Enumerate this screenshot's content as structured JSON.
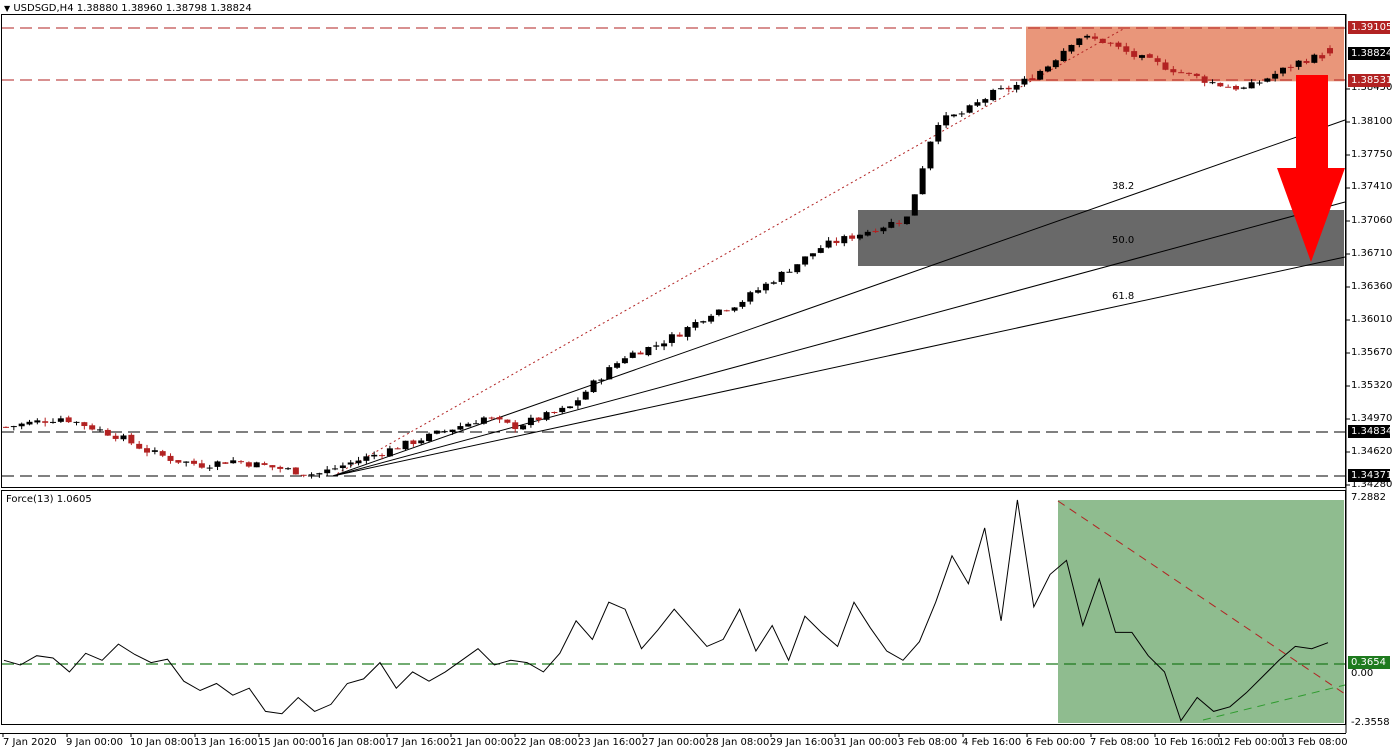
{
  "header": {
    "title": "USDSGD,H4  1.38880 1.38960 1.38798 1.38824",
    "symbol": "USDSGD",
    "timeframe": "H4",
    "open": "1.38880",
    "high": "1.38960",
    "low": "1.38798",
    "close": "1.38824"
  },
  "indicator": {
    "title": "Force(13) 1.0605",
    "name": "Force(13)",
    "value": "1.0605"
  },
  "price_axis": {
    "ticks": [
      "1.38450",
      "1.38100",
      "1.37750",
      "1.37410",
      "1.37060",
      "1.36710",
      "1.36360",
      "1.36010",
      "1.35670",
      "1.35320",
      "1.34970",
      "1.34620",
      "1.34280"
    ],
    "tags": [
      {
        "label": "1.39105",
        "color": "#b22222"
      },
      {
        "label": "1.38824",
        "color": "#000000"
      },
      {
        "label": "1.38531",
        "color": "#b22222"
      },
      {
        "label": "1.34834",
        "color": "#000000"
      },
      {
        "label": "1.34371",
        "color": "#000000"
      }
    ]
  },
  "force_axis": {
    "ticks": [
      "7.2882",
      "0.00",
      "-2.3558"
    ],
    "tag": {
      "label": "0.3654",
      "color": "#1e7a1e"
    }
  },
  "time_axis": [
    "7 Jan 2020",
    "9 Jan 00:00",
    "10 Jan 08:00",
    "13 Jan 16:00",
    "15 Jan 00:00",
    "16 Jan 08:00",
    "17 Jan 16:00",
    "21 Jan 00:00",
    "22 Jan 08:00",
    "23 Jan 16:00",
    "27 Jan 00:00",
    "28 Jan 08:00",
    "29 Jan 16:00",
    "31 Jan 00:00",
    "3 Feb 08:00",
    "4 Feb 16:00",
    "6 Feb 00:00",
    "7 Feb 08:00",
    "10 Feb 16:00",
    "12 Feb 00:00",
    "13 Feb 08:00"
  ],
  "fibonacci": {
    "labels": [
      "38.2",
      "50.0",
      "61.8"
    ]
  },
  "colors": {
    "bull": "#000000",
    "bear": "#b22222",
    "resistance_zone": "#e9967a",
    "support_zone": "#696969",
    "force_zone": "#8fbc8f",
    "arrow": "#ff0000",
    "force_level": "#1e7a1e"
  },
  "chart_data": [
    {
      "type": "candlestick",
      "title": "USDSGD,H4",
      "ylim": [
        1.3428,
        1.39105
      ],
      "horizontal_levels": [
        1.39105,
        1.38531,
        1.34834,
        1.34371
      ],
      "resistance_zone": [
        1.38531,
        1.39105
      ],
      "support_zone": [
        1.3656,
        1.372
      ],
      "annotation": "Red down arrow from resistance zone to 61.8 fib fan line (~1.3660)",
      "x_labels": [
        "7 Jan 2020",
        "9 Jan 00:00",
        "10 Jan 08:00",
        "13 Jan 16:00",
        "15 Jan 00:00",
        "16 Jan 08:00",
        "17 Jan 16:00",
        "21 Jan 00:00",
        "22 Jan 08:00",
        "23 Jan 16:00",
        "27 Jan 00:00",
        "28 Jan 08:00",
        "29 Jan 16:00",
        "31 Jan 00:00",
        "3 Feb 08:00",
        "4 Feb 16:00",
        "6 Feb 00:00",
        "7 Feb 08:00",
        "10 Feb 16:00",
        "12 Feb 00:00",
        "13 Feb 08:00"
      ],
      "approx_close_path": [
        1.349,
        1.3495,
        1.35,
        1.349,
        1.348,
        1.3465,
        1.3455,
        1.345,
        1.3455,
        1.345,
        1.3445,
        1.344,
        1.345,
        1.346,
        1.347,
        1.348,
        1.349,
        1.35,
        1.349,
        1.35,
        1.351,
        1.354,
        1.3565,
        1.3575,
        1.359,
        1.361,
        1.362,
        1.364,
        1.366,
        1.368,
        1.369,
        1.37,
        1.371,
        1.381,
        1.382,
        1.384,
        1.385,
        1.387,
        1.39,
        1.3895,
        1.388,
        1.387,
        1.386,
        1.385,
        1.3845,
        1.386,
        1.3875,
        1.3882
      ],
      "last": {
        "open": 1.3888,
        "high": 1.3896,
        "low": 1.38798,
        "close": 1.38824
      }
    },
    {
      "type": "line",
      "title": "Force(13) 1.0605",
      "ylim": [
        -2.3558,
        7.2882
      ],
      "horizontal_level": 0.3654,
      "annotation": "Green shaded zone with descending red trendline and ascending green trendline",
      "approx_values": [
        0.3,
        0.1,
        0.5,
        0.4,
        -0.2,
        0.6,
        0.3,
        1.0,
        0.55,
        0.2,
        0.35,
        -0.6,
        -1.0,
        -0.7,
        -1.2,
        -0.9,
        -1.9,
        -2.0,
        -1.3,
        -1.9,
        -1.6,
        -0.7,
        -0.5,
        0.2,
        -0.9,
        -0.2,
        -0.6,
        -0.2,
        0.3,
        0.8,
        0.1,
        0.3,
        0.2,
        -0.2,
        0.6,
        2.0,
        1.2,
        2.8,
        2.5,
        0.8,
        1.6,
        2.5,
        1.7,
        0.9,
        1.2,
        2.5,
        0.7,
        1.8,
        0.3,
        2.2,
        1.5,
        0.9,
        2.8,
        1.7,
        0.7,
        0.3,
        1.1,
        2.8,
        4.8,
        3.6,
        6.0,
        2.0,
        7.2,
        2.6,
        4.0,
        4.6,
        1.8,
        3.8,
        1.5,
        1.5,
        0.5,
        -0.2,
        -2.3,
        -1.3,
        -1.9,
        -1.7,
        -1.1,
        -0.4,
        0.3,
        0.9,
        0.8,
        1.06
      ]
    }
  ]
}
